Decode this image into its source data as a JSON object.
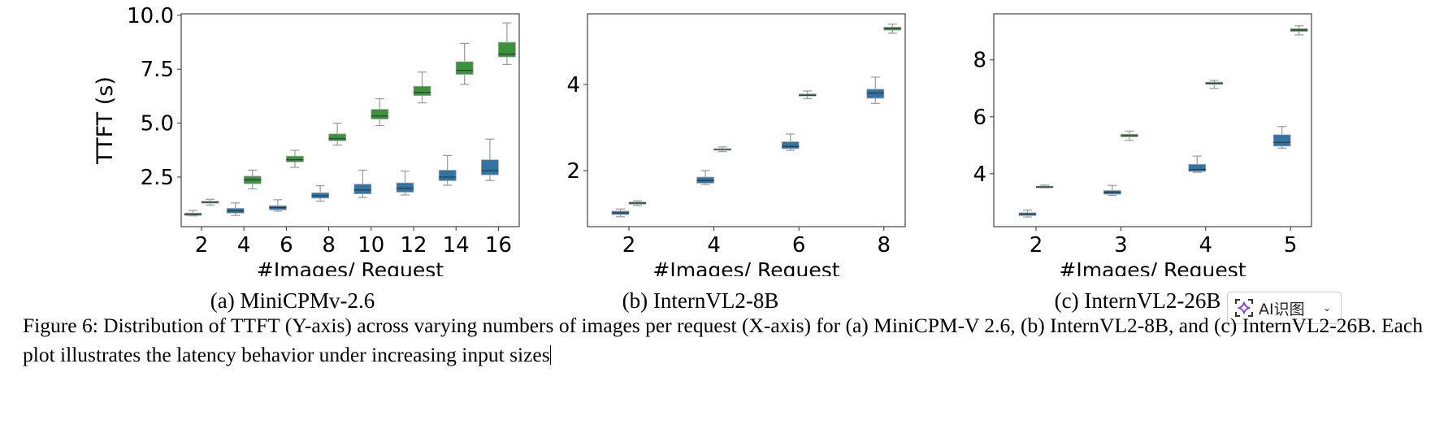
{
  "chart_data": [
    {
      "type": "box",
      "title": "(a) MiniCPMv-2.6",
      "xlabel": "#Images/ Request",
      "ylabel": "TTFT (s)",
      "categories": [
        "2",
        "4",
        "6",
        "8",
        "10",
        "12",
        "14",
        "16"
      ],
      "yticks": [
        "2.5",
        "5.0",
        "7.5",
        "10.0"
      ],
      "ytick_values": [
        2.5,
        5.0,
        7.5,
        10.0
      ],
      "ylim": [
        0.2,
        10.07
      ],
      "series": [
        {
          "name": "blue",
          "color": "#3274a1",
          "boxes": [
            {
              "wl": 0.7,
              "q1": 0.72,
              "med": 0.78,
              "q3": 0.83,
              "wh": 0.95
            },
            {
              "wl": 0.72,
              "q1": 0.83,
              "med": 0.93,
              "q3": 1.05,
              "wh": 1.3
            },
            {
              "wl": 0.92,
              "q1": 0.98,
              "med": 1.08,
              "q3": 1.17,
              "wh": 1.45
            },
            {
              "wl": 1.38,
              "q1": 1.52,
              "med": 1.63,
              "q3": 1.77,
              "wh": 2.1
            },
            {
              "wl": 1.55,
              "q1": 1.72,
              "med": 1.9,
              "q3": 2.17,
              "wh": 2.82
            },
            {
              "wl": 1.67,
              "q1": 1.8,
              "med": 1.98,
              "q3": 2.23,
              "wh": 2.78
            },
            {
              "wl": 2.12,
              "q1": 2.33,
              "med": 2.5,
              "q3": 2.82,
              "wh": 3.5
            },
            {
              "wl": 2.34,
              "q1": 2.6,
              "med": 2.8,
              "q3": 3.3,
              "wh": 4.26
            }
          ]
        },
        {
          "name": "green",
          "color": "#3a923a",
          "boxes": [
            {
              "wl": 1.2,
              "q1": 1.29,
              "med": 1.33,
              "q3": 1.38,
              "wh": 1.47
            },
            {
              "wl": 1.95,
              "q1": 2.19,
              "med": 2.37,
              "q3": 2.54,
              "wh": 2.82
            },
            {
              "wl": 2.95,
              "q1": 3.2,
              "med": 3.3,
              "q3": 3.47,
              "wh": 3.74
            },
            {
              "wl": 3.98,
              "q1": 4.18,
              "med": 4.28,
              "q3": 4.5,
              "wh": 5.0
            },
            {
              "wl": 4.89,
              "q1": 5.19,
              "med": 5.33,
              "q3": 5.64,
              "wh": 6.13
            },
            {
              "wl": 5.94,
              "q1": 6.28,
              "med": 6.43,
              "q3": 6.71,
              "wh": 7.37
            },
            {
              "wl": 6.8,
              "q1": 7.26,
              "med": 7.45,
              "q3": 7.85,
              "wh": 8.7
            },
            {
              "wl": 7.72,
              "q1": 8.07,
              "med": 8.2,
              "q3": 8.75,
              "wh": 9.65
            }
          ]
        }
      ]
    },
    {
      "type": "box",
      "title": "(b) InternVL2-8B",
      "xlabel": "#Images/ Request",
      "ylabel": "",
      "categories": [
        "2",
        "4",
        "6",
        "8"
      ],
      "yticks": [
        "2",
        "4"
      ],
      "ytick_values": [
        2,
        4
      ],
      "ylim": [
        0.7,
        5.64
      ],
      "series": [
        {
          "name": "blue",
          "color": "#3274a1",
          "boxes": [
            {
              "wl": 0.93,
              "q1": 0.98,
              "med": 1.02,
              "q3": 1.06,
              "wh": 1.11
            },
            {
              "wl": 1.68,
              "q1": 1.71,
              "med": 1.77,
              "q3": 1.85,
              "wh": 2.0
            },
            {
              "wl": 2.47,
              "q1": 2.51,
              "med": 2.56,
              "q3": 2.67,
              "wh": 2.85
            },
            {
              "wl": 3.56,
              "q1": 3.68,
              "med": 3.8,
              "q3": 3.89,
              "wh": 4.17
            }
          ]
        },
        {
          "name": "green",
          "color": "#3a923a",
          "boxes": [
            {
              "wl": 1.19,
              "q1": 1.22,
              "med": 1.25,
              "q3": 1.27,
              "wh": 1.3
            },
            {
              "wl": 2.44,
              "q1": 2.48,
              "med": 2.49,
              "q3": 2.51,
              "wh": 2.55
            },
            {
              "wl": 3.67,
              "q1": 3.73,
              "med": 3.75,
              "q3": 3.78,
              "wh": 3.85
            },
            {
              "wl": 5.19,
              "q1": 5.26,
              "med": 5.3,
              "q3": 5.33,
              "wh": 5.4
            }
          ]
        }
      ]
    },
    {
      "type": "box",
      "title": "(c) InternVL2-26B",
      "xlabel": "#Images/ Request",
      "ylabel": "",
      "categories": [
        "2",
        "3",
        "4",
        "5"
      ],
      "yticks": [
        "4",
        "6",
        "8"
      ],
      "ytick_values": [
        4,
        6,
        8
      ],
      "ylim": [
        2.14,
        9.62
      ],
      "series": [
        {
          "name": "blue",
          "color": "#3274a1",
          "boxes": [
            {
              "wl": 2.48,
              "q1": 2.53,
              "med": 2.58,
              "q3": 2.63,
              "wh": 2.72
            },
            {
              "wl": 3.24,
              "q1": 3.28,
              "med": 3.35,
              "q3": 3.41,
              "wh": 3.59
            },
            {
              "wl": 4.05,
              "q1": 4.08,
              "med": 4.15,
              "q3": 4.33,
              "wh": 4.62
            },
            {
              "wl": 4.9,
              "q1": 4.97,
              "med": 5.1,
              "q3": 5.37,
              "wh": 5.66
            }
          ]
        },
        {
          "name": "green",
          "color": "#3a923a",
          "boxes": [
            {
              "wl": 3.5,
              "q1": 3.51,
              "med": 3.54,
              "q3": 3.56,
              "wh": 3.6
            },
            {
              "wl": 5.17,
              "q1": 5.3,
              "med": 5.33,
              "q3": 5.39,
              "wh": 5.5
            },
            {
              "wl": 7.0,
              "q1": 7.14,
              "med": 7.18,
              "q3": 7.22,
              "wh": 7.28
            },
            {
              "wl": 8.88,
              "q1": 9.0,
              "med": 9.05,
              "q3": 9.1,
              "wh": 9.2
            }
          ]
        }
      ]
    }
  ],
  "figure_caption": "Figure 6: Distribution of TTFT (Y-axis) across varying numbers of images per request (X-axis) for (a) MiniCPM-V 2.6, (b) InternVL2-8B, and (c) InternVL2-26B. Each plot illustrates the latency behavior under increasing input sizes",
  "ai_button": {
    "label": "AI识图",
    "icon": "sparkle-scan-icon",
    "chevron": "chevron-down-icon",
    "accent": "#7b3fe4"
  }
}
